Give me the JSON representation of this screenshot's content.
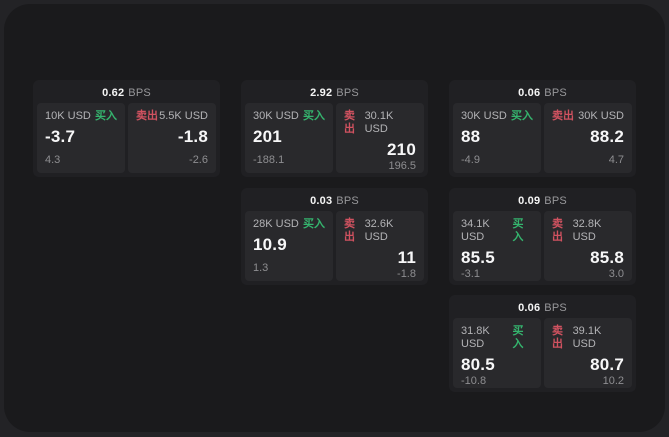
{
  "labels": {
    "bps_unit": "BPS",
    "buy": "买入",
    "sell": "卖出"
  },
  "colors": {
    "background": "#232326",
    "window": "#1a1a1c",
    "card": "#202023",
    "panel": "#29292c",
    "buy_green": "#35b46e",
    "sell_red": "#d15260"
  },
  "cards": [
    {
      "bps": "0.62",
      "buy": {
        "amount": "10K USD",
        "price": "-3.7",
        "change": "4.3"
      },
      "sell": {
        "amount": "5.5K USD",
        "price": "-1.8",
        "change": "-2.6"
      }
    },
    {
      "bps": "2.92",
      "buy": {
        "amount": "30K USD",
        "price": "201",
        "change": "-188.1"
      },
      "sell": {
        "amount": "30.1K USD",
        "price": "210",
        "change": "196.5"
      }
    },
    {
      "bps": "0.06",
      "buy": {
        "amount": "30K USD",
        "price": "88",
        "change": "-4.9"
      },
      "sell": {
        "amount": "30K USD",
        "price": "88.2",
        "change": "4.7"
      }
    },
    {
      "bps": "0.03",
      "buy": {
        "amount": "28K USD",
        "price": "10.9",
        "change": "1.3"
      },
      "sell": {
        "amount": "32.6K USD",
        "price": "11",
        "change": "-1.8"
      }
    },
    {
      "bps": "0.09",
      "buy": {
        "amount": "34.1K USD",
        "price": "85.5",
        "change": "-3.1"
      },
      "sell": {
        "amount": "32.8K USD",
        "price": "85.8",
        "change": "3.0"
      }
    },
    {
      "bps": "0.06",
      "buy": {
        "amount": "31.8K USD",
        "price": "80.5",
        "change": "-10.8"
      },
      "sell": {
        "amount": "39.1K USD",
        "price": "80.7",
        "change": "10.2"
      }
    }
  ]
}
